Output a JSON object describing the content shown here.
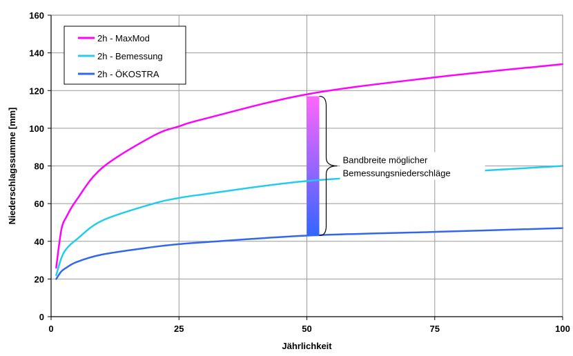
{
  "chart_data": {
    "type": "line",
    "xlabel": "Jährlichkeit",
    "ylabel": "Niederschlagssumme [mm]",
    "xlim": [
      0,
      100
    ],
    "ylim": [
      0,
      160
    ],
    "xticks": [
      0,
      25,
      50,
      75,
      100
    ],
    "yticks": [
      0,
      20,
      40,
      60,
      80,
      100,
      120,
      140,
      160
    ],
    "grid": true,
    "legend_position": "top-left",
    "series": [
      {
        "name": "2h - MaxMod",
        "color": "#ff00ff",
        "x": [
          1,
          2,
          3,
          5,
          10,
          20,
          25,
          30,
          50,
          75,
          100
        ],
        "y": [
          26,
          46,
          53,
          62,
          79,
          96,
          101,
          105,
          118,
          127,
          134
        ]
      },
      {
        "name": "2h - Bemessung",
        "color": "#22ccee",
        "x": [
          1,
          2,
          3,
          5,
          10,
          20,
          25,
          30,
          50,
          75,
          100
        ],
        "y": [
          22,
          31,
          36,
          41,
          51,
          60,
          63,
          65,
          72,
          76,
          80
        ]
      },
      {
        "name": "2h - ÖKOSTRA",
        "color": "#3366ee",
        "x": [
          1,
          2,
          3,
          5,
          10,
          20,
          25,
          30,
          50,
          75,
          100
        ],
        "y": [
          20,
          24,
          26,
          29,
          33,
          37,
          38.5,
          39.5,
          43,
          45,
          47
        ]
      }
    ],
    "annotation": {
      "lines": [
        "Bandbreite möglicher",
        "Bemessungsniederschläge"
      ],
      "x": 50,
      "y_top": 117,
      "y_bottom": 43,
      "gradient_top": "#ff66ff",
      "gradient_bottom": "#3366ff"
    }
  }
}
